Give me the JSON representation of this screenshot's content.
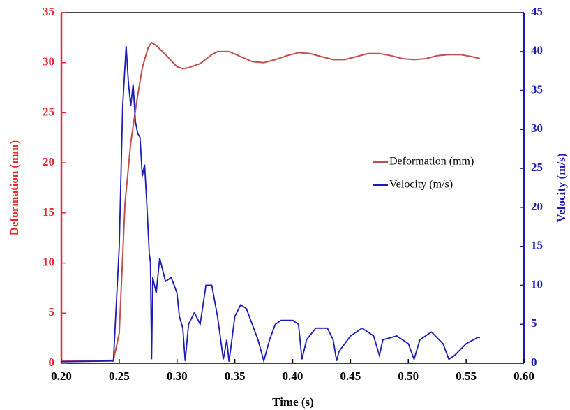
{
  "chart_data": {
    "type": "line",
    "x_label": "Time (s)",
    "y_label": "Deformation (mm)",
    "y2_label": "Velocity (m/s)",
    "xlim": [
      0.2,
      0.6
    ],
    "xticks": [
      {
        "value": 0.2,
        "label": "0.20"
      },
      0.25,
      {
        "value": 0.3,
        "label": "0.30"
      },
      0.35,
      {
        "value": 0.4,
        "label": "0.40"
      },
      0.45,
      {
        "value": 0.5,
        "label": "0.50"
      },
      0.55,
      {
        "value": 0.6,
        "label": "0.60"
      }
    ],
    "ylim": [
      0,
      35
    ],
    "yticks": [
      0,
      5,
      10,
      15,
      20,
      25,
      30,
      35
    ],
    "y2lim": [
      0,
      45
    ],
    "y2ticks": [
      0,
      5,
      10,
      15,
      20,
      25,
      30,
      35,
      40,
      45
    ],
    "y_color": "#e8262b",
    "y2_color": "#1c1cb4",
    "series": [
      {
        "name": "Deformation (mm)",
        "color": "#c0504d",
        "axis": "y",
        "x": [
          0.2,
          0.245,
          0.25,
          0.255,
          0.26,
          0.265,
          0.27,
          0.275,
          0.278,
          0.282,
          0.29,
          0.3,
          0.305,
          0.31,
          0.32,
          0.33,
          0.335,
          0.345,
          0.355,
          0.365,
          0.375,
          0.385,
          0.395,
          0.405,
          0.415,
          0.425,
          0.435,
          0.445,
          0.455,
          0.465,
          0.475,
          0.485,
          0.495,
          0.505,
          0.515,
          0.525,
          0.535,
          0.545,
          0.555,
          0.562
        ],
        "values": [
          0.2,
          0.3,
          3,
          16,
          22,
          26,
          29.5,
          31.5,
          32,
          31.7,
          30.8,
          29.6,
          29.4,
          29.5,
          29.9,
          30.8,
          31.1,
          31.1,
          30.6,
          30.1,
          30.0,
          30.3,
          30.7,
          31.0,
          30.9,
          30.6,
          30.3,
          30.3,
          30.6,
          30.9,
          30.9,
          30.7,
          30.4,
          30.3,
          30.4,
          30.7,
          30.8,
          30.8,
          30.6,
          30.4
        ]
      },
      {
        "name": "Velocity (m/s)",
        "color": "#1c1cb4",
        "axis": "y2",
        "x": [
          0.2,
          0.245,
          0.25,
          0.253,
          0.256,
          0.258,
          0.26,
          0.262,
          0.264,
          0.266,
          0.268,
          0.27,
          0.272,
          0.274,
          0.276,
          0.277,
          0.278,
          0.279,
          0.282,
          0.285,
          0.29,
          0.295,
          0.3,
          0.302,
          0.305,
          0.307,
          0.31,
          0.315,
          0.32,
          0.325,
          0.33,
          0.335,
          0.34,
          0.343,
          0.345,
          0.35,
          0.355,
          0.36,
          0.365,
          0.37,
          0.375,
          0.38,
          0.385,
          0.39,
          0.4,
          0.405,
          0.408,
          0.412,
          0.42,
          0.43,
          0.435,
          0.438,
          0.44,
          0.45,
          0.46,
          0.47,
          0.475,
          0.478,
          0.49,
          0.5,
          0.505,
          0.51,
          0.52,
          0.53,
          0.535,
          0.54,
          0.55,
          0.56,
          0.562
        ],
        "values": [
          0.2,
          0.3,
          15,
          33,
          40.7,
          36,
          33,
          35.8,
          31,
          29.5,
          29,
          24,
          25.5,
          20,
          14,
          13,
          0.5,
          11,
          9,
          13.5,
          10.5,
          11,
          9,
          6,
          4.5,
          0.3,
          5,
          6.5,
          5,
          10,
          10,
          6,
          0.5,
          3,
          0.2,
          6,
          7.5,
          7,
          5,
          3,
          0.3,
          3,
          5,
          5.5,
          5.5,
          5,
          0.5,
          3,
          4.5,
          4.5,
          3,
          0.3,
          1.5,
          3.5,
          4.5,
          3.5,
          1,
          3,
          3.5,
          2.5,
          0.5,
          3,
          4,
          2.5,
          0.5,
          1,
          2.5,
          3.3,
          3.3
        ]
      }
    ]
  }
}
